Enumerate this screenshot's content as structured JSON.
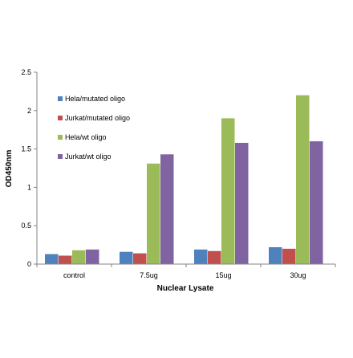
{
  "chart_data": {
    "type": "bar",
    "title": "",
    "xlabel": "Nuclear Lysate",
    "ylabel": "OD450nm",
    "categories": [
      "control",
      "7.5ug",
      "15ug",
      "30ug"
    ],
    "ylim": [
      0,
      2.5
    ],
    "yticks": [
      "0",
      "0.5",
      "1",
      "1.5",
      "2",
      "2.5"
    ],
    "grid": false,
    "legend_position": "top-left",
    "series": [
      {
        "name": "Hela/mutated oligo",
        "color": "#4F81BD",
        "values": [
          0.13,
          0.16,
          0.19,
          0.22
        ]
      },
      {
        "name": "Jurkat/mutated oligo",
        "color": "#C0504D",
        "values": [
          0.11,
          0.14,
          0.17,
          0.2
        ]
      },
      {
        "name": "Hela/wt oligo",
        "color": "#9BBB59",
        "values": [
          0.18,
          1.31,
          1.9,
          2.2
        ]
      },
      {
        "name": "Jurkat/wt oligo",
        "color": "#8064A2",
        "values": [
          0.19,
          1.43,
          1.58,
          1.6
        ]
      }
    ]
  }
}
